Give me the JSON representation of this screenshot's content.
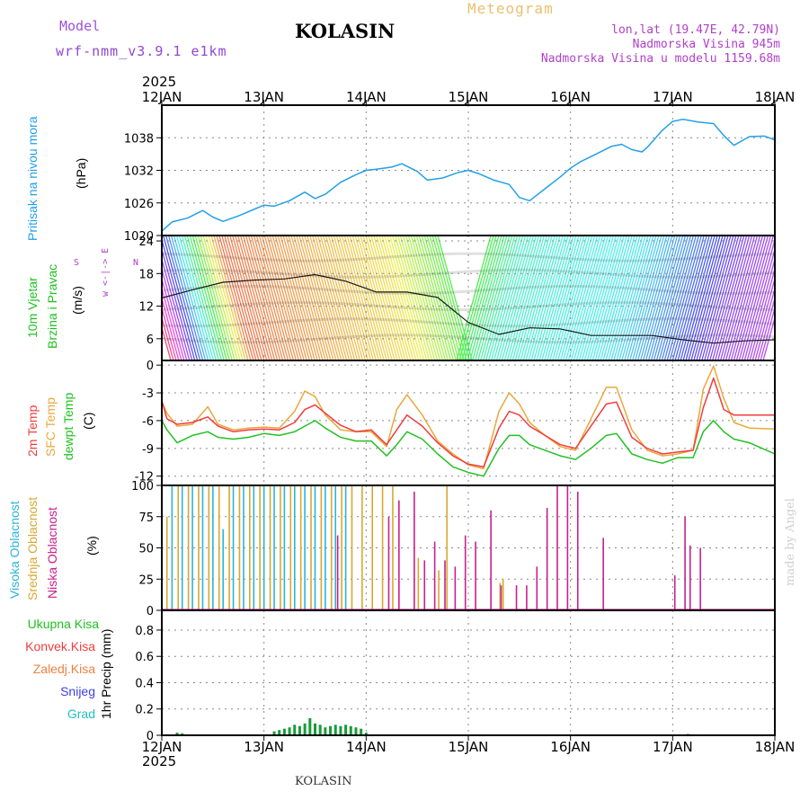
{
  "header": {
    "model_label": "Model",
    "model_name": "wrf-nmm_v3.9.1 e1km",
    "station": "KOLASIN",
    "product": "Meteogram",
    "coords": "lon,lat (19.47E, 42.79N)",
    "altitude": "Nadmorska Visina 945m",
    "model_altitude": "Nadmorska Visina u modelu 1159.68m"
  },
  "footer": {
    "station": "KOLASIN",
    "watermark": "made by Angel"
  },
  "years": {
    "top": "2025",
    "bottom": "2025"
  },
  "dates": [
    "12JAN",
    "13JAN",
    "14JAN",
    "15JAN",
    "16JAN",
    "17JAN",
    "18JAN"
  ],
  "panels": {
    "pressure": {
      "label": "Pritisak na nivou mora",
      "unit": "(hPa)"
    },
    "wind": {
      "label1": "10m Vjetar",
      "label2": "Brzina i Pravac",
      "unit": "(m/s)",
      "compass": "w <-|-> E",
      "compass_s": "S",
      "compass_n": "N"
    },
    "temp": {
      "label1": "2m Temp",
      "label2": "SFC Temp",
      "label3": "dewpt Temp",
      "unit": "(C)"
    },
    "cloud": {
      "label1": "Visoka Oblacnost",
      "label2": "Srednja Oblacnost",
      "label3": "Niska Oblacnost",
      "unit": "(%)"
    },
    "precip": {
      "label": "1hr Precip",
      "unit": "(mm)",
      "legend": [
        "Ukupna Kisa",
        "Konvek.Kisa",
        "Zaledj.Kisa",
        "Snijeg",
        "Grad"
      ]
    }
  },
  "colors": {
    "pressure": "#22a0e8",
    "temp2m": "#f03c3c",
    "sfc": "#e8a83c",
    "dew": "#22c022",
    "cloud_high": "#2db4d8",
    "cloud_mid": "#d8a830",
    "cloud_low": "#c8208c",
    "rain": "#1a9a3a",
    "conv": "#e03030",
    "freeze": "#f08040",
    "snow": "#4040e0",
    "hail": "#20c0c0"
  },
  "chart_data": [
    {
      "type": "line",
      "title": "Pritisak na nivou mora",
      "ylabel": "(hPa)",
      "x_unit": "days since 12JAN 2025 00Z",
      "ylim": [
        1020,
        1044
      ],
      "yticks": [
        1020,
        1026,
        1032,
        1038
      ],
      "x": [
        0,
        0.1,
        0.25,
        0.4,
        0.5,
        0.6,
        0.75,
        0.9,
        1.0,
        1.1,
        1.25,
        1.4,
        1.5,
        1.6,
        1.75,
        1.9,
        2.0,
        2.1,
        2.25,
        2.35,
        2.5,
        2.6,
        2.75,
        2.9,
        3.0,
        3.1,
        3.25,
        3.4,
        3.5,
        3.6,
        3.75,
        3.9,
        4.0,
        4.1,
        4.25,
        4.4,
        4.5,
        4.6,
        4.7,
        4.75,
        4.9,
        5.0,
        5.1,
        5.25,
        5.4,
        5.5,
        5.6,
        5.75,
        5.9,
        6.0
      ],
      "y": [
        1020.8,
        1022.5,
        1023.2,
        1024.6,
        1023.4,
        1022.6,
        1023.6,
        1024.8,
        1025.6,
        1025.4,
        1026.4,
        1028.0,
        1026.8,
        1027.6,
        1029.8,
        1031.2,
        1032.0,
        1032.2,
        1032.6,
        1033.2,
        1031.8,
        1030.2,
        1030.6,
        1031.6,
        1032.0,
        1031.4,
        1030.2,
        1029.4,
        1027.0,
        1026.4,
        1028.6,
        1030.8,
        1032.4,
        1033.6,
        1035.0,
        1036.4,
        1036.8,
        1035.8,
        1035.4,
        1036.2,
        1039.4,
        1041.0,
        1041.4,
        1040.9,
        1040.6,
        1038.4,
        1036.6,
        1038.2,
        1038.3,
        1037.6
      ]
    },
    {
      "type": "line",
      "title": "10m Vjetar Brzina i Pravac",
      "ylabel": "(m/s)",
      "x_unit": "days since 12JAN 2025 00Z",
      "ylim": [
        2,
        25
      ],
      "yticks": [
        6,
        12,
        18,
        24
      ],
      "x": [
        0,
        0.3,
        0.6,
        0.9,
        1.2,
        1.5,
        1.8,
        2.1,
        2.4,
        2.7,
        3.0,
        3.3,
        3.6,
        3.9,
        4.2,
        4.5,
        4.8,
        5.1,
        5.4,
        5.7,
        6.0
      ],
      "y": [
        13.5,
        15.0,
        16.4,
        16.8,
        17.0,
        17.8,
        16.6,
        14.6,
        14.6,
        13.6,
        9.0,
        6.8,
        8.0,
        7.8,
        6.6,
        6.6,
        6.6,
        5.8,
        5.2,
        5.6,
        5.8
      ]
    },
    {
      "type": "line",
      "title": "2m Temp / SFC Temp / dewpt Temp",
      "ylabel": "(C)",
      "x_unit": "days since 12JAN 2025 00Z",
      "ylim": [
        -13,
        0.5
      ],
      "yticks": [
        0,
        -3,
        -6,
        -9,
        -12
      ],
      "x": [
        0,
        0.05,
        0.15,
        0.3,
        0.45,
        0.55,
        0.7,
        0.85,
        1.0,
        1.15,
        1.3,
        1.4,
        1.5,
        1.6,
        1.75,
        1.9,
        2.05,
        2.2,
        2.3,
        2.4,
        2.55,
        2.7,
        2.85,
        3.0,
        3.15,
        3.3,
        3.4,
        3.5,
        3.6,
        3.75,
        3.9,
        4.05,
        4.2,
        4.35,
        4.45,
        4.6,
        4.75,
        4.9,
        5.05,
        5.2,
        5.3,
        5.4,
        5.5,
        5.6,
        5.75,
        6.0
      ],
      "series": [
        {
          "name": "2m Temp",
          "values": [
            -3.8,
            -5.8,
            -6.4,
            -6.2,
            -5.6,
            -6.6,
            -7.2,
            -7.0,
            -6.9,
            -7.0,
            -6.2,
            -4.8,
            -4.3,
            -5.2,
            -6.5,
            -7.2,
            -7.0,
            -8.6,
            -7.0,
            -5.4,
            -6.6,
            -8.4,
            -9.8,
            -10.7,
            -11.0,
            -6.8,
            -5.0,
            -5.4,
            -6.6,
            -7.6,
            -8.6,
            -9.0,
            -6.6,
            -4.2,
            -4.0,
            -7.8,
            -9.0,
            -9.6,
            -9.4,
            -9.2,
            -4.6,
            -1.4,
            -4.8,
            -5.4,
            -5.4,
            -5.4
          ]
        },
        {
          "name": "SFC Temp",
          "values": [
            -4.0,
            -5.2,
            -6.6,
            -6.4,
            -4.5,
            -6.4,
            -7.0,
            -6.8,
            -6.7,
            -6.8,
            -5.0,
            -2.8,
            -3.4,
            -5.4,
            -7.0,
            -7.2,
            -7.2,
            -8.8,
            -4.8,
            -3.2,
            -5.4,
            -8.2,
            -9.6,
            -10.8,
            -11.2,
            -5.0,
            -3.0,
            -4.2,
            -6.2,
            -7.6,
            -8.8,
            -9.2,
            -5.8,
            -2.4,
            -2.4,
            -7.0,
            -9.2,
            -9.8,
            -9.6,
            -9.2,
            -2.6,
            -0.1,
            -3.6,
            -6.2,
            -6.8,
            -6.9
          ]
        },
        {
          "name": "dewpt Temp",
          "values": [
            -6.0,
            -7.0,
            -8.4,
            -7.6,
            -7.2,
            -7.8,
            -8.0,
            -7.8,
            -7.4,
            -7.6,
            -7.2,
            -6.6,
            -6.0,
            -6.8,
            -7.8,
            -8.2,
            -8.2,
            -9.8,
            -8.6,
            -7.2,
            -8.0,
            -9.6,
            -11.0,
            -11.6,
            -12.0,
            -9.0,
            -7.6,
            -7.6,
            -8.6,
            -9.2,
            -9.8,
            -10.2,
            -9.0,
            -7.6,
            -7.4,
            -9.6,
            -10.2,
            -10.6,
            -10.0,
            -10.0,
            -7.2,
            -6.0,
            -7.2,
            -8.0,
            -8.4,
            -9.6
          ]
        }
      ]
    },
    {
      "type": "bar",
      "title": "Visoka / Srednja / Niska Oblacnost",
      "ylabel": "(%)",
      "x_unit": "days since 12JAN 2025 00Z",
      "ylim": [
        0,
        100
      ],
      "yticks": [
        0,
        25,
        50,
        75,
        100
      ],
      "series": [
        {
          "name": "Visoka Oblacnost",
          "x": [
            0.0,
            0.1,
            0.2,
            0.3,
            0.4,
            0.5,
            0.6,
            0.7,
            0.8,
            0.9,
            1.0,
            1.1,
            1.2,
            1.3,
            1.4,
            1.5,
            1.6,
            1.7,
            1.8
          ],
          "values": [
            100,
            100,
            100,
            100,
            100,
            100,
            65,
            100,
            100,
            100,
            100,
            100,
            100,
            100,
            100,
            100,
            100,
            100,
            100
          ]
        },
        {
          "name": "Srednja Oblacnost",
          "x": [
            0.04,
            0.15,
            0.25,
            0.35,
            0.45,
            0.55,
            0.65,
            0.75,
            0.85,
            0.95,
            1.05,
            1.15,
            1.25,
            1.35,
            1.45,
            1.55,
            1.65,
            1.75,
            1.85,
            1.95,
            2.05,
            2.15,
            2.25,
            2.5,
            2.7,
            2.78,
            3.3,
            3.33
          ],
          "values": [
            75,
            100,
            100,
            100,
            100,
            100,
            100,
            100,
            100,
            100,
            100,
            100,
            100,
            100,
            100,
            100,
            100,
            100,
            100,
            100,
            100,
            100,
            100,
            42,
            32,
            100,
            22,
            25
          ]
        },
        {
          "name": "Niska Oblacnost",
          "x": [
            1.7,
            2.2,
            2.3,
            2.45,
            2.55,
            2.65,
            2.75,
            2.85,
            2.95,
            3.05,
            3.2,
            3.3,
            3.45,
            3.55,
            3.65,
            3.75,
            3.85,
            3.95,
            4.05,
            4.3,
            5.0,
            5.1,
            5.15,
            5.25
          ],
          "values": [
            60,
            75,
            88,
            95,
            40,
            55,
            40,
            35,
            60,
            55,
            80,
            20,
            20,
            20,
            35,
            82,
            100,
            100,
            95,
            58,
            28,
            75,
            52,
            50
          ]
        }
      ]
    },
    {
      "type": "bar",
      "title": "1hr Precip",
      "ylabel": "(mm)",
      "x_unit": "days since 12JAN 2025 00Z",
      "ylim": [
        0,
        0.95
      ],
      "yticks": [
        0,
        0.2,
        0.4,
        0.6,
        0.8
      ],
      "series": [
        {
          "name": "Ukupna Kisa",
          "x": [
            0.15,
            0.2,
            1.1,
            1.15,
            1.2,
            1.25,
            1.3,
            1.35,
            1.4,
            1.45,
            1.5,
            1.55,
            1.6,
            1.65,
            1.7,
            1.75,
            1.8,
            1.85,
            1.9,
            1.95,
            2.0,
            5.15
          ],
          "values": [
            0.02,
            0.015,
            0.03,
            0.04,
            0.05,
            0.06,
            0.08,
            0.07,
            0.09,
            0.13,
            0.09,
            0.08,
            0.06,
            0.07,
            0.08,
            0.07,
            0.08,
            0.07,
            0.06,
            0.05,
            0.02,
            0.01
          ]
        }
      ]
    }
  ]
}
